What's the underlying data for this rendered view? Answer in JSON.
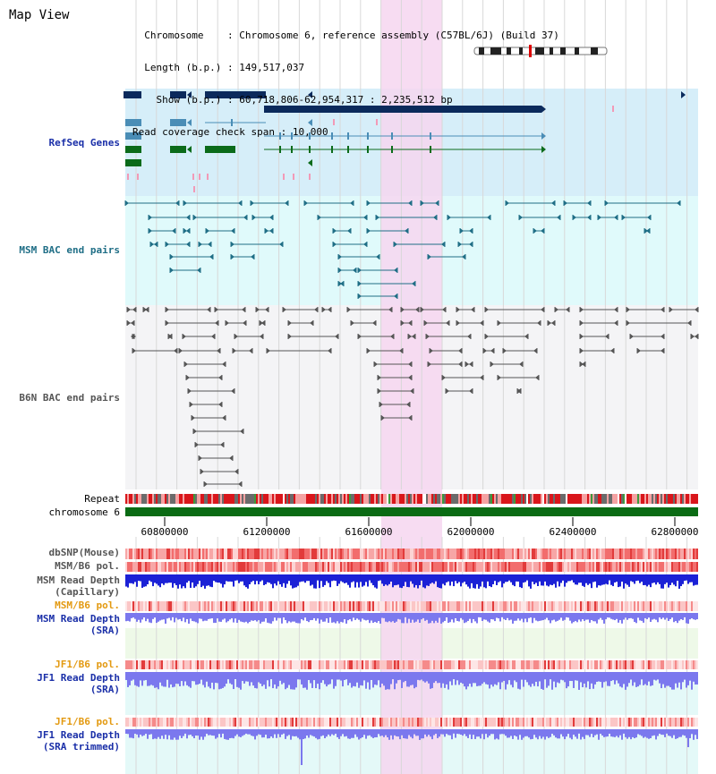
{
  "view_title": "Map View",
  "info": {
    "chromosome_label": "Chromosome",
    "chromosome_value": "Chromosome 6, reference assembly (C57BL/6J) (Build 37)",
    "length_label": "Length (b.p.)",
    "length_value": "149,517,037",
    "show_label": "Show (b.p.)",
    "show_value": "60,718,806-62,954,317 : 2,235,512 bp",
    "coverage_label": "Read coverage check span",
    "coverage_value": "10,000"
  },
  "tracks": {
    "refseq": "RefSeq Genes",
    "msm_bac": "MSM BAC end pairs",
    "b6n_bac": "B6N BAC end pairs",
    "repeat": "Repeat",
    "chromosome": "chromosome 6",
    "dbsnp": "dbSNP(Mouse)",
    "msm_b6_pol_1": "MSM/B6 pol.",
    "msm_read_depth_cap_1": "MSM Read Depth",
    "msm_read_depth_cap_2": "(Capillary)",
    "msm_b6_pol_2": "MSM/B6 pol.",
    "msm_read_depth_sra_1": "MSM Read Depth",
    "msm_read_depth_sra_2": "(SRA)",
    "jf1_b6_pol_1": "JF1/B6 pol.",
    "jf1_read_depth_sra_1": "JF1 Read Depth",
    "jf1_read_depth_sra_2": "(SRA)",
    "jf1_b6_pol_2": "JF1/B6 pol.",
    "jf1_read_depth_trim_1": "JF1 Read Depth",
    "jf1_read_depth_trim_2": "(SRA trimmed)"
  },
  "axis": {
    "ticks": [
      "60800000",
      "61200000",
      "61600000",
      "62000000",
      "62400000",
      "62800000"
    ]
  },
  "colors": {
    "highlight": "#f6d6f0",
    "refseq_bg": "#d6eef9",
    "msm_bg": "#e0fafb",
    "b6n_bg": "#f4f4f6",
    "gene_navy": "#0b2a5c",
    "gene_steel": "#4a8db6",
    "gene_green": "#0b6b1a",
    "depth_blue": "#1b21d6",
    "depth_light": "#7b78ee",
    "chrom_green": "#0a6b14"
  }
}
